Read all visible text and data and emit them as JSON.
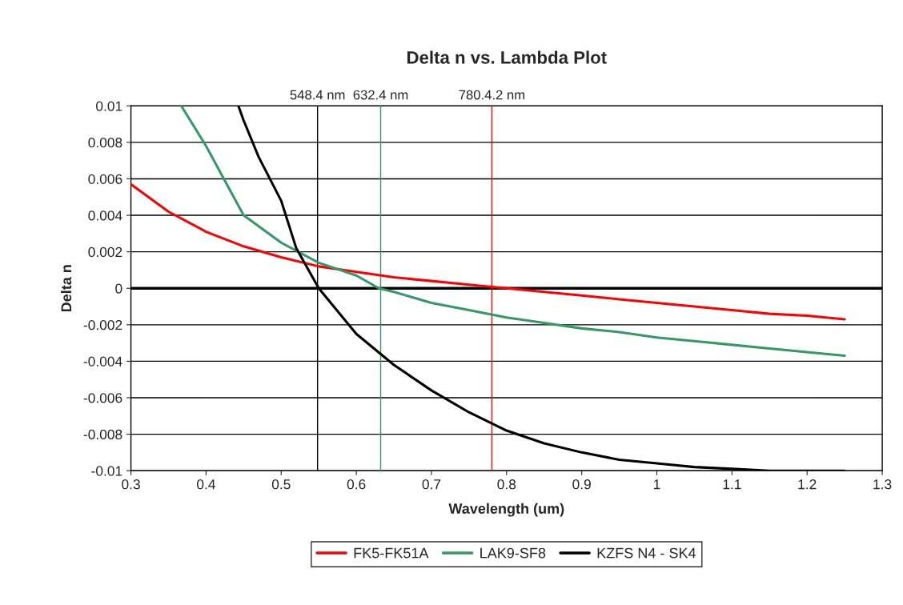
{
  "chart_data": {
    "type": "line",
    "title": "Delta n vs. Lambda Plot",
    "xlabel": "Wavelength (um)",
    "ylabel": "Delta n",
    "xlim": [
      0.3,
      1.3
    ],
    "xticks": [
      0.3,
      0.4,
      0.5,
      0.6,
      0.7,
      0.8,
      0.9,
      1,
      1.1,
      1.2,
      1.3
    ],
    "ylim": [
      -0.01,
      0.01
    ],
    "yticks": [
      -0.01,
      -0.008,
      -0.006,
      -0.004,
      -0.002,
      0,
      0.002,
      0.004,
      0.006,
      0.008,
      0.01
    ],
    "grid": "y",
    "legend": "bottom",
    "marker": "none",
    "line_style": "solid",
    "series": [
      {
        "name": "FK5-FK51A",
        "color": "#ff0000",
        "x": [
          0.3,
          0.35,
          0.4,
          0.45,
          0.5,
          0.55,
          0.6,
          0.65,
          0.7,
          0.75,
          0.8,
          0.85,
          0.9,
          0.95,
          1.0,
          1.05,
          1.1,
          1.15,
          1.2,
          1.25
        ],
        "values": [
          0.0057,
          0.0042,
          0.0031,
          0.0023,
          0.0017,
          0.0012,
          0.0009,
          0.0006,
          0.0004,
          0.0002,
          0.0,
          -0.0002,
          -0.0004,
          -0.0006,
          -0.0008,
          -0.001,
          -0.0012,
          -0.0014,
          -0.0015,
          -0.0017
        ]
      },
      {
        "name": "LAK9-SF8",
        "color": "#339966",
        "x": [
          0.367,
          0.4,
          0.45,
          0.5,
          0.55,
          0.6,
          0.63,
          0.65,
          0.7,
          0.75,
          0.8,
          0.85,
          0.9,
          0.95,
          1.0,
          1.05,
          1.1,
          1.15,
          1.2,
          1.25
        ],
        "values": [
          0.01,
          0.0078,
          0.004,
          0.0025,
          0.0014,
          0.0007,
          0.0,
          -0.0002,
          -0.0008,
          -0.0012,
          -0.0016,
          -0.0019,
          -0.0022,
          -0.0024,
          -0.0027,
          -0.0029,
          -0.0031,
          -0.0033,
          -0.0035,
          -0.0037
        ]
      },
      {
        "name": "KZFS N4 - SK4",
        "color": "#000000",
        "x": [
          0.443,
          0.45,
          0.47,
          0.5,
          0.52,
          0.55,
          0.6,
          0.65,
          0.7,
          0.75,
          0.8,
          0.85,
          0.9,
          0.95,
          1.0,
          1.05,
          1.1,
          1.15,
          1.25
        ],
        "values": [
          0.01,
          0.0092,
          0.0072,
          0.0048,
          0.0022,
          0.0,
          -0.0025,
          -0.0042,
          -0.0056,
          -0.0068,
          -0.0078,
          -0.0085,
          -0.009,
          -0.0094,
          -0.0096,
          -0.0098,
          -0.0099,
          -0.01,
          -0.01
        ]
      }
    ],
    "ref_lines": [
      {
        "axis": "y",
        "value": 0,
        "label": null,
        "color": "#000000"
      },
      {
        "axis": "x",
        "value": 0.5484,
        "label": "548.4 nm",
        "color": "#000000"
      },
      {
        "axis": "x",
        "value": 0.6324,
        "label": "632.4 nm",
        "color": "#339966"
      },
      {
        "axis": "x",
        "value": 0.7804,
        "label": "780.4.2 nm",
        "color": "#ff0000"
      }
    ]
  }
}
